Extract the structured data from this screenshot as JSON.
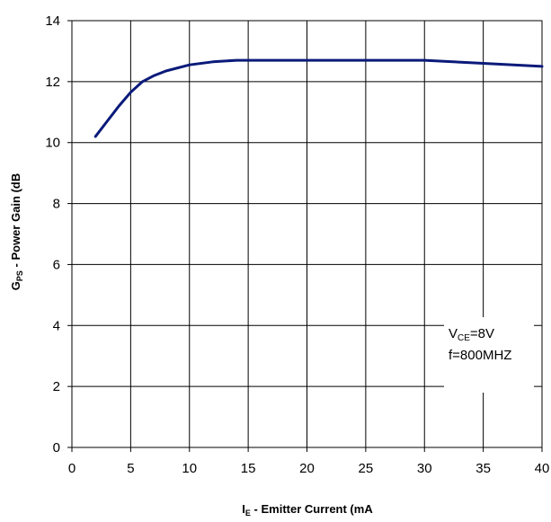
{
  "chart_data": {
    "type": "line",
    "xlabel": {
      "main": "I",
      "sub": "E",
      "rest": " - Emitter Current (mA"
    },
    "ylabel": {
      "main": "G",
      "sub": "PS",
      "rest": " - Power Gain (dB"
    },
    "xlim": [
      0,
      40
    ],
    "ylim": [
      0,
      14
    ],
    "xticks": [
      0,
      5,
      10,
      15,
      20,
      25,
      30,
      35,
      40
    ],
    "yticks": [
      0,
      2,
      4,
      6,
      8,
      10,
      12,
      14
    ],
    "grid": true,
    "line_color": "#0a1a7a",
    "series": [
      {
        "x": [
          2,
          3,
          4,
          5,
          6,
          7,
          8,
          10,
          12,
          14,
          16,
          20,
          25,
          30,
          35,
          40
        ],
        "y": [
          10.2,
          10.7,
          11.2,
          11.65,
          12.0,
          12.2,
          12.35,
          12.55,
          12.65,
          12.7,
          12.7,
          12.7,
          12.7,
          12.7,
          12.6,
          12.5
        ]
      }
    ],
    "annotation": {
      "line1": {
        "main": "V",
        "sub": "CE",
        "rest": "=8V"
      },
      "line2": "f=800MHZ"
    }
  }
}
